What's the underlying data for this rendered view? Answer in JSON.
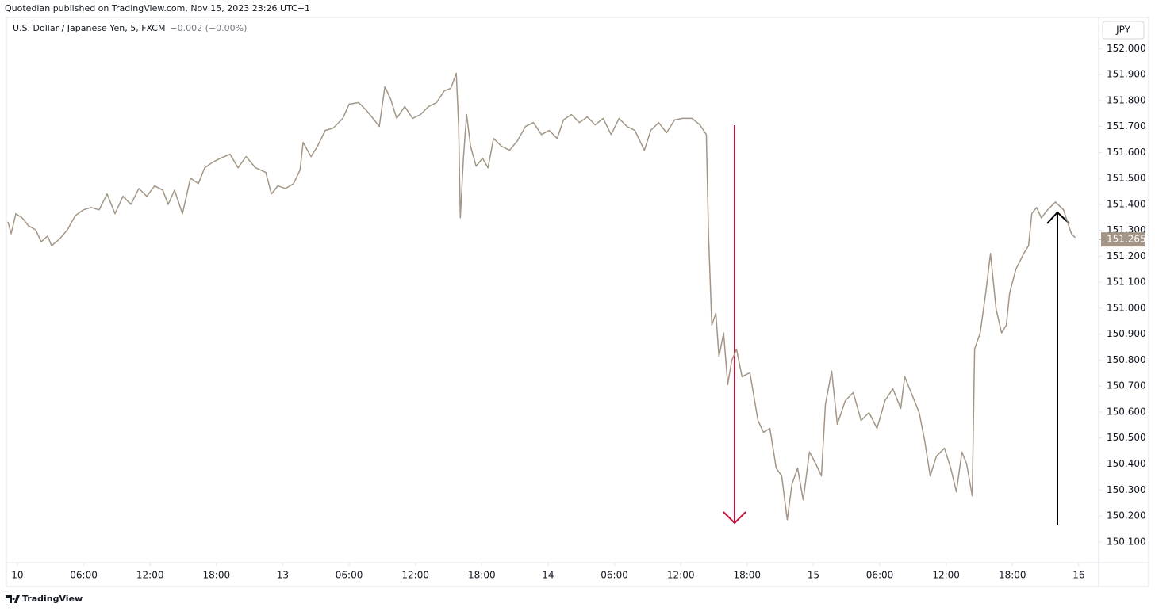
{
  "header": "Quotedian published on TradingView.com, Nov 15, 2023 23:26 UTC+1",
  "footer": "TradingView",
  "chart_data": {
    "type": "line",
    "currency": "JPY",
    "change_label": "−0.002 (−0.00%)",
    "last_price": 151.265,
    "grid": false,
    "xlim": [
      -1,
      97.8
    ],
    "ylim": [
      150.02,
      152.12
    ],
    "xticks": [
      {
        "value": 0,
        "label": "10"
      },
      {
        "value": 6,
        "label": "06:00"
      },
      {
        "value": 12,
        "label": "12:00"
      },
      {
        "value": 18,
        "label": "18:00"
      },
      {
        "value": 24,
        "label": "13"
      },
      {
        "value": 30,
        "label": "06:00"
      },
      {
        "value": 36,
        "label": "12:00"
      },
      {
        "value": 42,
        "label": "18:00"
      },
      {
        "value": 48,
        "label": "14"
      },
      {
        "value": 54,
        "label": "06:00"
      },
      {
        "value": 60,
        "label": "12:00"
      },
      {
        "value": 66,
        "label": "18:00"
      },
      {
        "value": 72,
        "label": "15"
      },
      {
        "value": 78,
        "label": "06:00"
      },
      {
        "value": 84,
        "label": "12:00"
      },
      {
        "value": 90,
        "label": "18:00"
      },
      {
        "value": 96,
        "label": "16"
      }
    ],
    "yticks": [
      {
        "value": 150.1,
        "label": "150.100"
      },
      {
        "value": 150.2,
        "label": "150.200"
      },
      {
        "value": 150.3,
        "label": "150.300"
      },
      {
        "value": 150.4,
        "label": "150.400"
      },
      {
        "value": 150.5,
        "label": "150.500"
      },
      {
        "value": 150.6,
        "label": "150.600"
      },
      {
        "value": 150.7,
        "label": "150.700"
      },
      {
        "value": 150.8,
        "label": "150.800"
      },
      {
        "value": 150.9,
        "label": "150.900"
      },
      {
        "value": 151,
        "label": "151.000"
      },
      {
        "value": 151.1,
        "label": "151.100"
      },
      {
        "value": 151.2,
        "label": "151.200"
      },
      {
        "value": 151.3,
        "label": "151.300"
      },
      {
        "value": 151.4,
        "label": "151.400"
      },
      {
        "value": 151.5,
        "label": "151.500"
      },
      {
        "value": 151.6,
        "label": "151.600"
      },
      {
        "value": 151.7,
        "label": "151.700"
      },
      {
        "value": 151.8,
        "label": "151.800"
      },
      {
        "value": 151.9,
        "label": "151.900"
      },
      {
        "value": 152,
        "label": "152.000"
      }
    ],
    "x": [
      -0.86,
      -0.57,
      -0.14,
      0.43,
      1.0,
      1.65,
      2.15,
      2.73,
      3.09,
      3.8,
      4.52,
      5.24,
      5.96,
      6.68,
      7.39,
      8.11,
      8.83,
      9.55,
      10.27,
      10.98,
      11.7,
      12.42,
      13.14,
      13.64,
      14.21,
      14.93,
      15.65,
      16.37,
      16.94,
      17.66,
      18.38,
      19.24,
      19.96,
      20.68,
      21.54,
      22.47,
      22.97,
      23.55,
      24.26,
      24.98,
      25.56,
      25.84,
      26.56,
      27.14,
      27.85,
      28.57,
      29.43,
      30.0,
      30.87,
      31.58,
      32.16,
      32.73,
      33.24,
      33.74,
      34.31,
      35.03,
      35.75,
      36.47,
      37.19,
      37.9,
      38.62,
      39.2,
      39.7,
      39.91,
      40.06,
      40.34,
      40.63,
      40.99,
      41.49,
      42.07,
      42.57,
      43.07,
      43.79,
      44.51,
      45.23,
      45.95,
      46.67,
      47.4,
      48.1,
      48.82,
      49.39,
      50.11,
      50.83,
      51.55,
      52.26,
      52.98,
      53.7,
      54.42,
      55.13,
      55.85,
      56.71,
      57.29,
      58.0,
      58.72,
      59.44,
      60.16,
      61.02,
      61.74,
      62.31,
      62.52,
      62.81,
      63.17,
      63.45,
      63.88,
      64.25,
      64.6,
      65.04,
      65.54,
      66.25,
      66.98,
      67.48,
      68.06,
      68.63,
      69.13,
      69.63,
      70.06,
      70.57,
      71.07,
      71.64,
      72.22,
      72.72,
      73.08,
      73.65,
      74.16,
      74.88,
      75.6,
      76.31,
      77.03,
      77.75,
      78.47,
      79.18,
      79.9,
      80.26,
      80.84,
      81.56,
      82.06,
      82.56,
      83.13,
      83.85,
      84.42,
      84.93,
      85.43,
      85.86,
      86.36,
      86.58,
      87.08,
      87.58,
      88.01,
      88.52,
      89.02,
      89.45,
      89.74,
      90.31,
      91.03,
      91.46,
      91.75,
      92.18,
      92.61,
      93.18,
      93.9,
      94.62,
      94.97,
      95.33,
      95.69
    ],
    "series": [
      {
        "name": "U.S. Dollar / Japanese Yen, 5, FXCM",
        "color": "#a39686",
        "values": [
          151.333,
          151.287,
          151.364,
          151.348,
          151.318,
          151.302,
          151.256,
          151.278,
          151.241,
          151.266,
          151.302,
          151.357,
          151.379,
          151.388,
          151.379,
          151.44,
          151.364,
          151.431,
          151.4,
          151.461,
          151.431,
          151.471,
          151.455,
          151.4,
          151.455,
          151.364,
          151.501,
          151.48,
          151.541,
          151.562,
          151.578,
          151.593,
          151.541,
          151.584,
          151.541,
          151.523,
          151.44,
          151.471,
          151.461,
          151.48,
          151.532,
          151.639,
          151.584,
          151.624,
          151.685,
          151.694,
          151.731,
          151.786,
          151.792,
          151.761,
          151.731,
          151.7,
          151.853,
          151.807,
          151.731,
          151.777,
          151.731,
          151.746,
          151.777,
          151.792,
          151.838,
          151.847,
          151.905,
          151.7,
          151.348,
          151.578,
          151.746,
          151.624,
          151.547,
          151.578,
          151.541,
          151.654,
          151.624,
          151.608,
          151.645,
          151.7,
          151.715,
          151.669,
          151.685,
          151.654,
          151.725,
          151.746,
          151.715,
          151.737,
          151.706,
          151.731,
          151.669,
          151.731,
          151.7,
          151.685,
          151.608,
          151.685,
          151.715,
          151.676,
          151.725,
          151.731,
          151.731,
          151.706,
          151.669,
          151.272,
          150.935,
          150.981,
          150.813,
          150.905,
          150.706,
          150.797,
          150.843,
          150.736,
          150.752,
          150.568,
          150.522,
          150.537,
          150.384,
          150.354,
          150.185,
          150.323,
          150.384,
          150.262,
          150.446,
          150.4,
          150.354,
          150.629,
          150.758,
          150.553,
          150.644,
          150.675,
          150.568,
          150.598,
          150.537,
          150.644,
          150.69,
          150.614,
          150.736,
          150.675,
          150.598,
          150.491,
          150.354,
          150.43,
          150.461,
          150.384,
          150.293,
          150.446,
          150.4,
          150.277,
          150.843,
          150.905,
          151.058,
          151.211,
          150.996,
          150.905,
          150.935,
          151.058,
          151.15,
          151.211,
          151.241,
          151.364,
          151.388,
          151.348,
          151.379,
          151.409,
          151.379,
          151.333,
          151.287,
          151.272
        ]
      }
    ]
  }
}
